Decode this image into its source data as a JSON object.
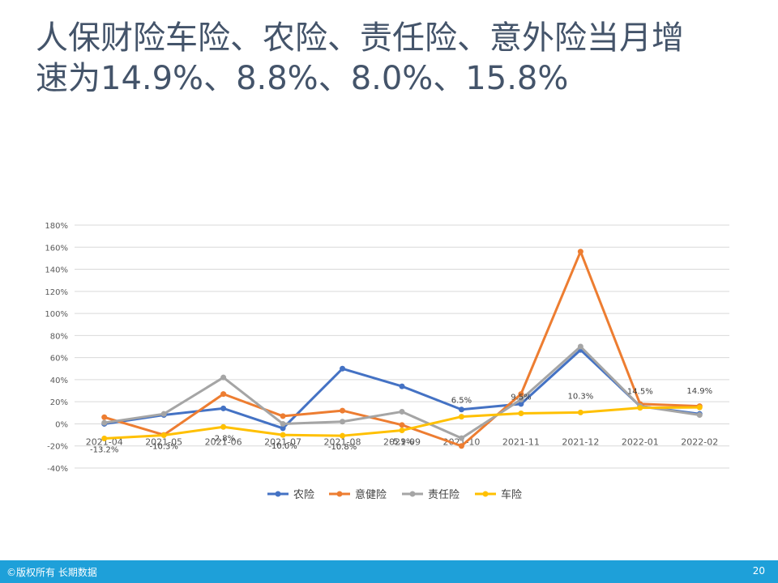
{
  "slide": {
    "title_line1": "人保财险车险、农险、责任险、意外险当月增",
    "title_line2": "速为14.9%、8.8%、8.0%、15.8%",
    "footer_left": "©版权所有 长期数据",
    "page_number": "20"
  },
  "chart_data": {
    "type": "line",
    "x": [
      "2021-04",
      "2021-05",
      "2021-06",
      "2021-07",
      "2021-08",
      "2021-09",
      "2021-10",
      "2021-11",
      "2021-12",
      "2022-01",
      "2022-02"
    ],
    "ylim": [
      -40,
      180
    ],
    "yticks": [
      -40,
      -20,
      0,
      20,
      40,
      60,
      80,
      100,
      120,
      140,
      160,
      180
    ],
    "ytick_labels": [
      "-40%",
      "-20%",
      "0%",
      "20%",
      "40%",
      "60%",
      "80%",
      "100%",
      "120%",
      "140%",
      "160%",
      "180%"
    ],
    "grid": true,
    "legend_position": "bottom",
    "series": [
      {
        "name": "农险",
        "color": "#4472c4",
        "values": [
          0,
          8,
          14,
          -4,
          50,
          34,
          13,
          18,
          67,
          16,
          9
        ]
      },
      {
        "name": "意健险",
        "color": "#ed7d31",
        "values": [
          6,
          -10,
          27,
          7,
          12,
          -1,
          -20,
          27,
          156,
          18,
          16
        ]
      },
      {
        "name": "责任险",
        "color": "#a5a5a5",
        "values": [
          1,
          9,
          42,
          0,
          2,
          11,
          -13,
          22,
          70,
          16,
          8
        ]
      },
      {
        "name": "车险",
        "color": "#ffc000",
        "values": [
          -13.2,
          -10.3,
          -2.8,
          -10.0,
          -10.8,
          -5.9,
          6.5,
          9.5,
          10.3,
          14.5,
          14.9
        ]
      }
    ],
    "data_labels": [
      "-13.2%",
      "-10.3%",
      "-2.8%",
      "-10.0%",
      "-10.8%",
      "-5.9%",
      "6.5%",
      "9.5%",
      "10.3%",
      "14.5%",
      "14.9%"
    ]
  }
}
